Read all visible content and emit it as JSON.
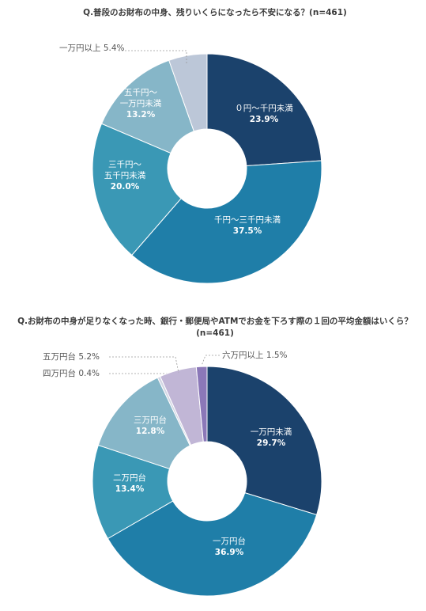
{
  "chart_data": [
    {
      "type": "pie",
      "title": "Q.普段のお財布の中身、残りいくらになったら不安になる？(n=461)",
      "slices": [
        {
          "label_lines": [
            "０円～千円未満"
          ],
          "value": 23.9,
          "value_text": "23.9%",
          "color": "#1b426c"
        },
        {
          "label_lines": [
            "千円～三千円未満"
          ],
          "value": 37.5,
          "value_text": "37.5%",
          "color": "#1f7ea8"
        },
        {
          "label_lines": [
            "三千円～",
            "五千円未満"
          ],
          "value": 20.0,
          "value_text": "20.0%",
          "color": "#3a98b5"
        },
        {
          "label_lines": [
            "五千円～",
            "一万円未満"
          ],
          "value": 13.2,
          "value_text": "13.2%",
          "color": "#86b6c8"
        },
        {
          "label_lines": [
            "一万円以上"
          ],
          "value": 5.4,
          "value_text": "5.4%",
          "color": "#bcc7d8",
          "callout": "一万円以上 5.4%"
        }
      ]
    },
    {
      "type": "pie",
      "title": "Q.お財布の中身が足りなくなった時、銀行・郵便局やATMでお金を下ろす際の１回の平均金額はいくら？",
      "subtitle": "(n=461)",
      "slices": [
        {
          "label_lines": [
            "一万円未満"
          ],
          "value": 29.7,
          "value_text": "29.7%",
          "color": "#1b426c"
        },
        {
          "label_lines": [
            "一万円台"
          ],
          "value": 36.9,
          "value_text": "36.9%",
          "color": "#1f7ea8"
        },
        {
          "label_lines": [
            "二万円台"
          ],
          "value": 13.4,
          "value_text": "13.4%",
          "color": "#3a98b5"
        },
        {
          "label_lines": [
            "三万円台"
          ],
          "value": 12.8,
          "value_text": "12.8%",
          "color": "#86b6c8"
        },
        {
          "label_lines": [
            "四万円台"
          ],
          "value": 0.4,
          "value_text": "0.4%",
          "color": "#d3d6e4",
          "callout": "四万円台 0.4%"
        },
        {
          "label_lines": [
            "五万円台"
          ],
          "value": 5.2,
          "value_text": "5.2%",
          "color": "#c1b6d6",
          "callout": "五万円台 5.2%"
        },
        {
          "label_lines": [
            "六万円以上"
          ],
          "value": 1.5,
          "value_text": "1.5%",
          "color": "#8b78b8",
          "callout": "六万円以上 1.5%"
        }
      ]
    }
  ]
}
